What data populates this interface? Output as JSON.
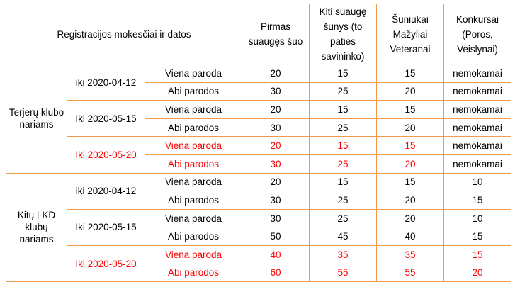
{
  "header": {
    "main": "Registracijos mokesčiai ir datos",
    "col1": "Pirmas suaugęs šuo",
    "col2": "Kiti suaugę šunys (to paties savininko)",
    "col3": "Šuniukai Mažyliai Veteranai",
    "col4": "Konkursai (Poros, Veislynai)"
  },
  "colors": {
    "border": "#f29a4a",
    "highlight": "#ff0000",
    "text": "#000000"
  },
  "groups": [
    {
      "label": "Terjerų klubo nariams",
      "periods": [
        {
          "date": "iki 2020-04-12",
          "highlight": false,
          "rows": [
            {
              "type": "Viena paroda",
              "c1": "20",
              "c2": "15",
              "c3": "15",
              "c4": "nemokamai"
            },
            {
              "type": "Abi parodos",
              "c1": "30",
              "c2": "25",
              "c3": "20",
              "c4": "nemokamai"
            }
          ]
        },
        {
          "date": "Iki 2020-05-15",
          "highlight": false,
          "rows": [
            {
              "type": "Viena paroda",
              "c1": "20",
              "c2": "15",
              "c3": "15",
              "c4": "nemokamai"
            },
            {
              "type": "Abi parodos",
              "c1": "30",
              "c2": "25",
              "c3": "20",
              "c4": "nemokamai"
            }
          ]
        },
        {
          "date": "Iki 2020-05-20",
          "highlight": true,
          "rows": [
            {
              "type": "Viena paroda",
              "c1": "20",
              "c2": "15",
              "c3": "15",
              "c4": "nemokamai"
            },
            {
              "type": "Abi parodos",
              "c1": "30",
              "c2": "25",
              "c3": "20",
              "c4": "nemokamai"
            }
          ]
        }
      ]
    },
    {
      "label": "Kitų LKD klubų nariams",
      "periods": [
        {
          "date": "iki 2020-04-12",
          "highlight": false,
          "rows": [
            {
              "type": "Viena paroda",
              "c1": "20",
              "c2": "15",
              "c3": "15",
              "c4": "10"
            },
            {
              "type": "Abi parodos",
              "c1": "30",
              "c2": "25",
              "c3": "20",
              "c4": "15"
            }
          ]
        },
        {
          "date": "Iki 2020-05-15",
          "highlight": false,
          "rows": [
            {
              "type": "Viena paroda",
              "c1": "30",
              "c2": "25",
              "c3": "20",
              "c4": "10"
            },
            {
              "type": "Abi parodos",
              "c1": "50",
              "c2": "45",
              "c3": "40",
              "c4": "15"
            }
          ]
        },
        {
          "date": "Iki 2020-05-20",
          "highlight": true,
          "rows": [
            {
              "type": "Viena paroda",
              "c1": "40",
              "c2": "35",
              "c3": "35",
              "c4": "15"
            },
            {
              "type": "Abi parodos",
              "c1": "60",
              "c2": "55",
              "c3": "55",
              "c4": "20"
            }
          ]
        }
      ]
    }
  ]
}
